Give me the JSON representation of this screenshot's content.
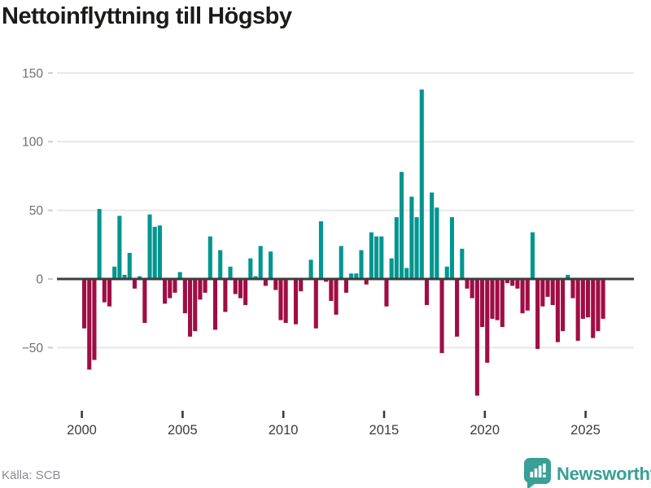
{
  "title": "Nettoinflyttning till Högsby",
  "source": "Källa: SCB",
  "logo": {
    "text": "Newsworthy"
  },
  "colors": {
    "positive": "#00968f",
    "negative": "#a00d45",
    "grid": "#e7e7e7",
    "zero_line": "#3d3d3d",
    "y_label": "#6e6e78",
    "x_label": "#3c3c3c",
    "axis_tick": "#3c3c3c",
    "y_dash": "#cccccc",
    "title": "#1b1b19",
    "source": "#8a8a93",
    "logo": "#38a096"
  },
  "chart_data": {
    "type": "bar",
    "title": "Nettoinflyttning till Högsby",
    "x_unit": "quarter",
    "start_year": 2000,
    "start_quarter": 1,
    "values": [
      -36,
      -66,
      -59,
      51,
      -17,
      -20,
      9,
      46,
      3,
      19,
      -7,
      2,
      -32,
      47,
      38,
      39,
      -18,
      -14,
      -10,
      5,
      -25,
      -42,
      -38,
      -15,
      -10,
      31,
      -37,
      21,
      -24,
      9,
      -11,
      -14,
      -19,
      15,
      2,
      24,
      -5,
      20,
      -8,
      -30,
      -32,
      0,
      -33,
      -9,
      0,
      14,
      -36,
      42,
      -2,
      -16,
      -26,
      24,
      -10,
      4,
      4,
      21,
      -4,
      34,
      31,
      31,
      -20,
      15,
      45,
      78,
      8,
      60,
      45,
      138,
      -19,
      63,
      52,
      -54,
      9,
      45,
      -42,
      22,
      -7,
      -14,
      -85,
      -35,
      -61,
      -29,
      -30,
      -35,
      -3,
      -5,
      -7,
      -25,
      -23,
      34,
      -51,
      -20,
      -13,
      -19,
      -46,
      -38,
      3,
      -14,
      -45,
      -29,
      -28,
      -43,
      -38,
      -29
    ],
    "x_tick_years": [
      2000,
      2005,
      2010,
      2015,
      2020,
      2025
    ],
    "y_ticks": [
      -50,
      0,
      50,
      100,
      150
    ],
    "ylim": [
      -90,
      155
    ],
    "grid": true,
    "legend": false,
    "ylabel": "",
    "xlabel": ""
  }
}
